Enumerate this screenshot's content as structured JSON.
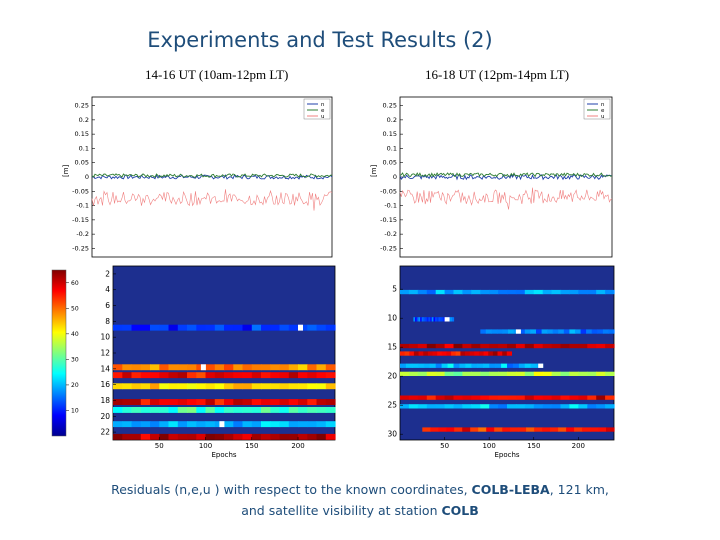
{
  "title": "Experiments and Test Results (2)",
  "subtitles": {
    "left": "14-16 UT (10am-12pm LT)",
    "right": "16-18 UT (12pm-14pm LT)"
  },
  "caption": {
    "line1_pre": "Residuals (n,e,u ) with respect to the known coordinates, ",
    "line1_bold": "COLB-LEBA",
    "line1_post": ", 121 km,",
    "line2_pre": "and satellite visibility at station ",
    "line2_bold": "COLB"
  },
  "colors": {
    "title_text": "#1e4d7a",
    "caption_text": "#1e4d7a",
    "series_n": "#1f3fa8",
    "series_e": "#2e7d32",
    "series_u": "#f08080",
    "heatmap_bg": "#1d2f8f"
  },
  "chart_data": [
    {
      "type": "line",
      "panel": "top-left",
      "ylabel": "[m]",
      "ylim": [
        -0.28,
        0.28
      ],
      "yticks": [
        "0.25",
        "0.2",
        "0.15",
        "0.1",
        "0.05",
        "0",
        "-0.05",
        "-0.1",
        "-0.15",
        "-0.2",
        "-0.25"
      ],
      "grid": false,
      "legend": {
        "placement": "top-right",
        "entries": [
          "n",
          "e",
          "u"
        ]
      },
      "series": [
        {
          "name": "n",
          "mean": 0.0,
          "noise": 0.007
        },
        {
          "name": "e",
          "mean": 0.005,
          "noise": 0.006
        },
        {
          "name": "u",
          "mean": -0.075,
          "noise": 0.025
        }
      ]
    },
    {
      "type": "line",
      "panel": "top-right",
      "ylabel": "[m]",
      "ylim": [
        -0.28,
        0.28
      ],
      "yticks": [
        "0.25",
        "0.2",
        "0.15",
        "0.1",
        "0.05",
        "0",
        "-0.05",
        "-0.1",
        "-0.15",
        "-0.2",
        "-0.25"
      ],
      "grid": false,
      "legend": {
        "placement": "top-right",
        "entries": [
          "n",
          "e",
          "u"
        ]
      },
      "series": [
        {
          "name": "n",
          "mean": 0.0,
          "noise": 0.008
        },
        {
          "name": "e",
          "mean": 0.008,
          "noise": 0.006
        },
        {
          "name": "u",
          "mean": -0.07,
          "noise": 0.025
        }
      ]
    },
    {
      "type": "heatmap",
      "panel": "bottom-left",
      "xlabel": "Epochs",
      "xlim": [
        0,
        240
      ],
      "xticks": [
        50,
        100,
        150,
        200
      ],
      "ylim": [
        1,
        23
      ],
      "yticks": [
        2,
        4,
        6,
        8,
        10,
        12,
        14,
        16,
        18,
        20,
        22
      ],
      "bands": [
        {
          "row": 8.8,
          "start": 0,
          "end": 240,
          "fill": 0.18,
          "gap": 200
        },
        {
          "row": 13.8,
          "start": 0,
          "end": 240,
          "fill": 0.75,
          "gap": 95
        },
        {
          "row": 14.8,
          "start": 0,
          "end": 240,
          "fill": 0.88
        },
        {
          "row": 16.2,
          "start": 0,
          "end": 240,
          "fill": 0.65
        },
        {
          "row": 18.2,
          "start": 0,
          "end": 240,
          "fill": 0.9
        },
        {
          "row": 19.2,
          "start": 0,
          "end": 240,
          "fill": 0.42
        },
        {
          "row": 21.0,
          "start": 0,
          "end": 240,
          "fill": 0.3,
          "gap": 115
        },
        {
          "row": 22.6,
          "start": 0,
          "end": 240,
          "fill": 0.95
        }
      ]
    },
    {
      "type": "heatmap",
      "panel": "bottom-right",
      "xlabel": "Epochs",
      "xlim": [
        0,
        240
      ],
      "xticks": [
        50,
        100,
        150,
        200
      ],
      "ylim": [
        1,
        31
      ],
      "yticks": [
        5,
        10,
        15,
        20,
        25,
        30
      ],
      "colorbar": {
        "range": [
          0,
          65
        ],
        "ticks": [
          10,
          20,
          30,
          40,
          50,
          60
        ]
      },
      "bands": [
        {
          "row": 5.5,
          "start": 0,
          "end": 240,
          "fill": 0.28
        },
        {
          "row": 10.2,
          "start": 15,
          "end": 60,
          "fill": 0.2,
          "gap": 50
        },
        {
          "row": 12.3,
          "start": 90,
          "end": 240,
          "fill": 0.25,
          "gap": 130
        },
        {
          "row": 14.8,
          "start": 0,
          "end": 240,
          "fill": 0.95
        },
        {
          "row": 16.1,
          "start": 0,
          "end": 125,
          "fill": 0.9
        },
        {
          "row": 18.2,
          "start": 0,
          "end": 160,
          "fill": 0.3,
          "gap": 155
        },
        {
          "row": 19.6,
          "start": 0,
          "end": 240,
          "fill": 0.55
        },
        {
          "row": 23.7,
          "start": 0,
          "end": 240,
          "fill": 0.9
        },
        {
          "row": 25.2,
          "start": 0,
          "end": 240,
          "fill": 0.3
        },
        {
          "row": 29.2,
          "start": 25,
          "end": 240,
          "fill": 0.85
        }
      ]
    }
  ]
}
